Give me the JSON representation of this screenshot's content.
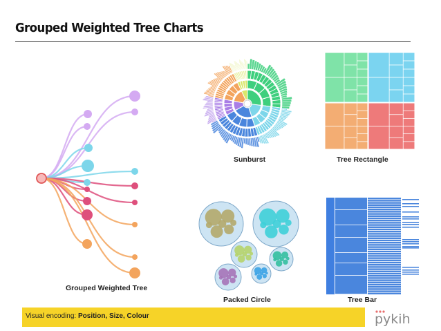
{
  "title": "Grouped Weighted Tree Charts",
  "captions": {
    "grouped_tree": "Grouped Weighted Tree",
    "sunburst": "Sunburst",
    "tree_rectangle": "Tree Rectangle",
    "packed_circle": "Packed Circle",
    "tree_bar": "Tree Bar"
  },
  "footer": {
    "prefix": "Visual encoding: ",
    "emphasis": "Position, Size, Colour"
  },
  "logo": {
    "text": "pykih"
  },
  "colors": {
    "purple": "#d4aaf2",
    "cyan": "#7dd6ea",
    "pink": "#de4f7c",
    "orange": "#f3a45d",
    "green": "#3ecf7d",
    "blue": "#4a86dd",
    "red": "#e86f6f",
    "yellow": "#f6d328"
  }
}
